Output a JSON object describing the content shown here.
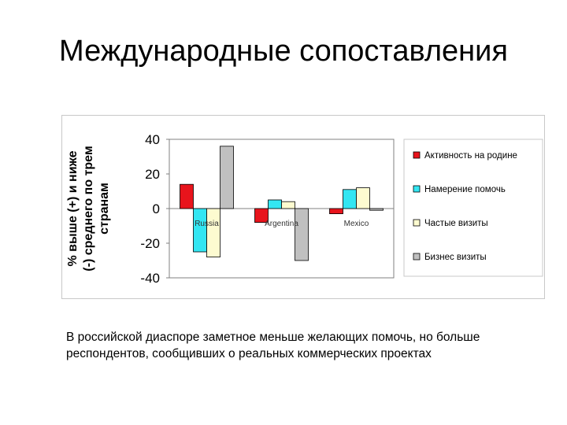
{
  "slide": {
    "title": "Международные сопоставления",
    "caption": "В российской диаспоре заметное меньше желающих помочь, но больше респондентов, сообщивших о реальных коммерческих проектах"
  },
  "colors": {
    "series": [
      "#e8141c",
      "#33e6f2",
      "#fdfbd0",
      "#c0c0c0"
    ],
    "axis": "#808080",
    "text": "#000000"
  },
  "chart_data": {
    "type": "bar",
    "ylabel": "% выше (+) и ниже (-) среднего по трем странам",
    "ylim": [
      -40,
      40
    ],
    "yticks": [
      40,
      20,
      0,
      -20,
      -40
    ],
    "grid": false,
    "legend_position": "right",
    "categories": [
      "Russia",
      "Argentina",
      "Mexico"
    ],
    "series": [
      {
        "name": "Активность на родине",
        "values": [
          14,
          -8,
          -3
        ]
      },
      {
        "name": "Намерение помочь",
        "values": [
          -25,
          5,
          11
        ]
      },
      {
        "name": "Частые визиты",
        "values": [
          -28,
          4,
          12
        ]
      },
      {
        "name": "Бизнес визиты",
        "values": [
          36,
          -30,
          -1
        ]
      }
    ]
  }
}
